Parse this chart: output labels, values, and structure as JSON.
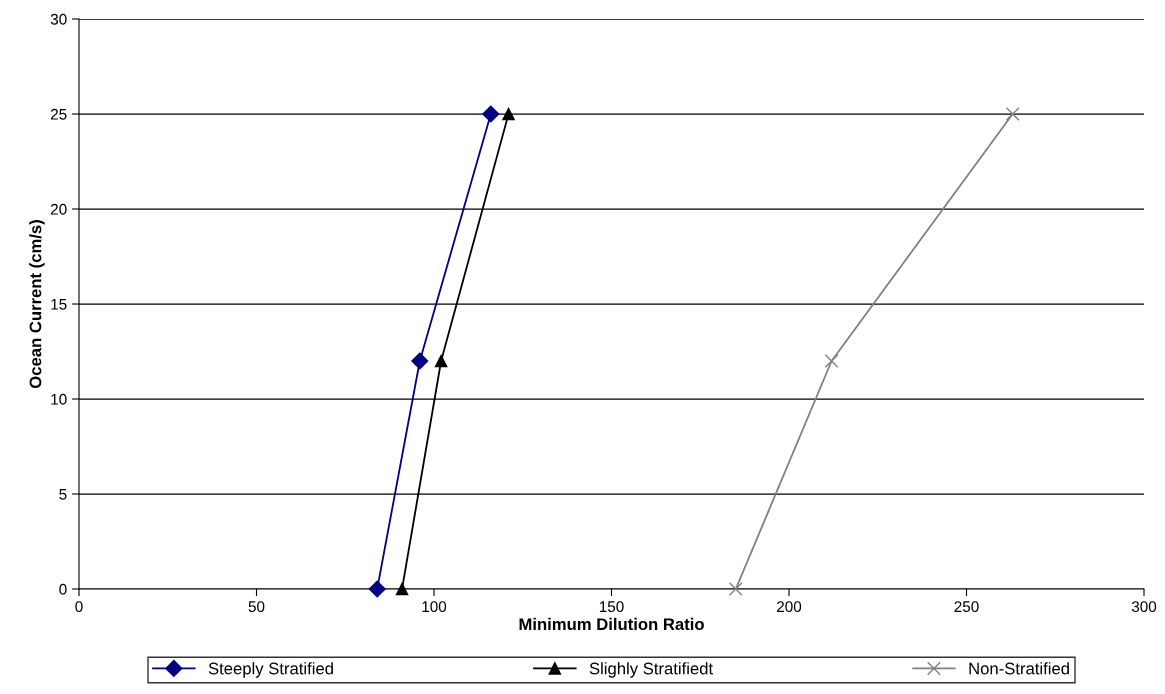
{
  "chart_data": {
    "type": "line",
    "xlabel": "Minimum Dilution Ratio",
    "ylabel": "Ocean Current (cm/s)",
    "xlim": [
      0,
      300
    ],
    "xticks": [
      0,
      50,
      100,
      150,
      200,
      250,
      300
    ],
    "ylim": [
      0,
      30
    ],
    "yticks": [
      0,
      5,
      10,
      15,
      20,
      25,
      30
    ],
    "grid": "y",
    "legend": "bottom",
    "series": [
      {
        "name": "Steeply Stratified",
        "color": "#000080",
        "marker": "diamond",
        "x": [
          84,
          96,
          116
        ],
        "values": [
          0,
          12,
          25
        ]
      },
      {
        "name": "Slighly Stratifiedt",
        "color": "#000000",
        "marker": "triangle",
        "x": [
          91,
          102,
          121
        ],
        "values": [
          0,
          12,
          25
        ]
      },
      {
        "name": "Non-Stratified",
        "color": "#808080",
        "marker": "cross",
        "x": [
          185,
          212,
          263
        ],
        "values": [
          0,
          12,
          25
        ]
      }
    ]
  }
}
